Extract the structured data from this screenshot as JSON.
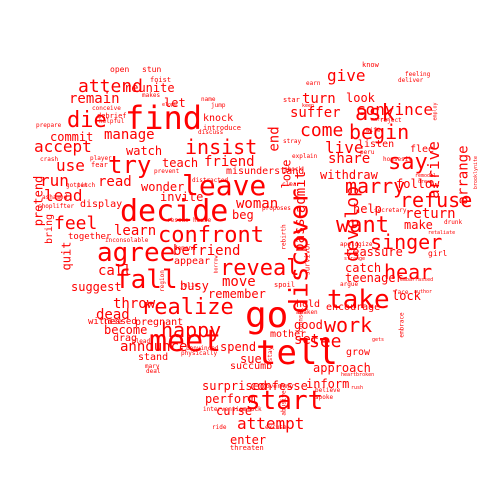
{
  "theme": {
    "word_color": "#ff0000",
    "background": "#ffffff",
    "shape": "heart"
  },
  "words": [
    {
      "id": "tell",
      "text": "tell"
    },
    {
      "id": "go",
      "text": "go"
    },
    {
      "id": "meet",
      "text": "meet"
    },
    {
      "id": "find",
      "text": "find"
    },
    {
      "id": "decide",
      "text": "decide"
    },
    {
      "id": "leave",
      "text": "leave"
    },
    {
      "id": "agree",
      "text": "agree"
    },
    {
      "id": "fall",
      "text": "fall"
    },
    {
      "id": "take",
      "text": "take"
    },
    {
      "id": "discover",
      "text": "discover"
    },
    {
      "id": "start",
      "text": "start"
    },
    {
      "id": "confront",
      "text": "confront"
    },
    {
      "id": "realize",
      "text": "realize"
    },
    {
      "id": "reveal",
      "text": "reveal"
    },
    {
      "id": "try",
      "text": "try"
    },
    {
      "id": "ask",
      "text": "ask"
    },
    {
      "id": "want",
      "text": "want"
    },
    {
      "id": "work",
      "text": "work"
    },
    {
      "id": "say",
      "text": "say"
    },
    {
      "id": "begin",
      "text": "begin"
    },
    {
      "id": "singer",
      "text": "singer"
    },
    {
      "id": "refuse",
      "text": "refuse"
    },
    {
      "id": "insist",
      "text": "insist"
    },
    {
      "id": "happy",
      "text": "happy"
    },
    {
      "id": "die",
      "text": "die"
    },
    {
      "id": "come",
      "text": "come"
    },
    {
      "id": "marry",
      "text": "marry"
    },
    {
      "id": "attend",
      "text": "attend"
    },
    {
      "id": "hear",
      "text": "hear"
    },
    {
      "id": "attempt",
      "text": "attempt"
    },
    {
      "id": "accept",
      "text": "accept"
    },
    {
      "id": "develop",
      "text": "develop"
    },
    {
      "id": "arrive",
      "text": "arrive"
    },
    {
      "id": "convince",
      "text": "convince"
    },
    {
      "id": "feel",
      "text": "feel"
    },
    {
      "id": "give",
      "text": "give"
    },
    {
      "id": "live",
      "text": "live"
    },
    {
      "id": "see",
      "text": "see"
    },
    {
      "id": "remain",
      "text": "remain"
    },
    {
      "id": "manage",
      "text": "manage"
    },
    {
      "id": "use",
      "text": "use"
    },
    {
      "id": "run",
      "text": "run"
    },
    {
      "id": "woman",
      "text": "woman"
    },
    {
      "id": "learn",
      "text": "learn"
    },
    {
      "id": "end",
      "text": "end"
    },
    {
      "id": "befriend",
      "text": "befriend"
    },
    {
      "id": "announce",
      "text": "announce"
    },
    {
      "id": "move",
      "text": "move"
    },
    {
      "id": "friend",
      "text": "friend"
    },
    {
      "id": "suffer",
      "text": "suffer"
    },
    {
      "id": "share",
      "text": "share"
    },
    {
      "id": "turn",
      "text": "turn"
    },
    {
      "id": "return",
      "text": "return"
    },
    {
      "id": "lead",
      "text": "lead"
    },
    {
      "id": "call",
      "text": "call"
    },
    {
      "id": "throw",
      "text": "throw"
    },
    {
      "id": "dead",
      "text": "dead"
    },
    {
      "id": "set",
      "text": "set"
    },
    {
      "id": "remember",
      "text": "remember"
    },
    {
      "id": "pass",
      "text": "pass"
    },
    {
      "id": "admit",
      "text": "admit"
    },
    {
      "id": "read",
      "text": "read"
    },
    {
      "id": "watch",
      "text": "watch"
    },
    {
      "id": "reunite",
      "text": "reunite"
    },
    {
      "id": "arrange",
      "text": "arrange"
    },
    {
      "id": "perform",
      "text": "perform"
    },
    {
      "id": "surprised",
      "text": "surprised"
    },
    {
      "id": "catch",
      "text": "catch"
    },
    {
      "id": "good",
      "text": "good"
    },
    {
      "id": "enter",
      "text": "enter"
    },
    {
      "id": "lock",
      "text": "lock"
    },
    {
      "id": "let",
      "text": "let"
    },
    {
      "id": "commit",
      "text": "commit"
    },
    {
      "id": "teach",
      "text": "teach"
    },
    {
      "id": "wonder",
      "text": "wonder"
    },
    {
      "id": "invite",
      "text": "invite"
    },
    {
      "id": "beg",
      "text": "beg"
    },
    {
      "id": "withdraw",
      "text": "withdraw"
    },
    {
      "id": "pretend",
      "text": "pretend"
    },
    {
      "id": "quit",
      "text": "quit"
    },
    {
      "id": "busy",
      "text": "busy"
    },
    {
      "id": "suggest",
      "text": "suggest"
    },
    {
      "id": "become",
      "text": "become"
    },
    {
      "id": "spend",
      "text": "spend"
    },
    {
      "id": "follow",
      "text": "follow"
    },
    {
      "id": "look",
      "text": "look"
    },
    {
      "id": "love",
      "text": "love"
    },
    {
      "id": "help",
      "text": "help"
    },
    {
      "id": "make",
      "text": "make"
    },
    {
      "id": "reassure",
      "text": "reassure"
    },
    {
      "id": "teenager",
      "text": "teenager"
    },
    {
      "id": "confesse",
      "text": "confesse"
    },
    {
      "id": "curse",
      "text": "curse"
    },
    {
      "id": "approach",
      "text": "approach"
    },
    {
      "id": "inform",
      "text": "inform"
    },
    {
      "id": "sue",
      "text": "sue"
    },
    {
      "id": "appear",
      "text": "appear"
    },
    {
      "id": "hold",
      "text": "hold"
    },
    {
      "id": "encourage",
      "text": "encourage"
    },
    {
      "id": "mother",
      "text": "mother"
    },
    {
      "id": "knock",
      "text": "knock"
    },
    {
      "id": "misunderstand",
      "text": "misunderstand"
    },
    {
      "id": "flee",
      "text": "flee"
    },
    {
      "id": "listen",
      "text": "listen"
    },
    {
      "id": "grow",
      "text": "grow"
    },
    {
      "id": "display",
      "text": "display"
    },
    {
      "id": "together",
      "text": "together"
    },
    {
      "id": "witnessed",
      "text": "witnessed"
    },
    {
      "id": "pregnant",
      "text": "pregnant"
    },
    {
      "id": "succumb",
      "text": "succumb"
    },
    {
      "id": "drag",
      "text": "drag"
    },
    {
      "id": "stand",
      "text": "stand"
    },
    {
      "id": "lose",
      "text": "lose"
    },
    {
      "id": "bring",
      "text": "bring"
    },
    {
      "id": "open",
      "text": "open"
    },
    {
      "id": "stun",
      "text": "stun"
    },
    {
      "id": "foist",
      "text": "foist"
    },
    {
      "id": "makes",
      "text": "makes"
    },
    {
      "id": "conceive",
      "text": "conceive"
    },
    {
      "id": "helpful",
      "text": "helpful"
    },
    {
      "id": "debrief",
      "text": "debrief"
    },
    {
      "id": "prepare",
      "text": "prepare"
    },
    {
      "id": "name",
      "text": "name"
    },
    {
      "id": "jump",
      "text": "jump"
    },
    {
      "id": "discuss",
      "text": "discuss"
    },
    {
      "id": "introduce",
      "text": "introduce"
    },
    {
      "id": "prevent",
      "text": "prevent"
    },
    {
      "id": "distracted",
      "text": "distracted"
    },
    {
      "id": "player",
      "text": "player"
    },
    {
      "id": "fear",
      "text": "fear"
    },
    {
      "id": "crash",
      "text": "crash"
    },
    {
      "id": "gotten",
      "text": "gotten"
    },
    {
      "id": "ashamed",
      "text": "ashamed"
    },
    {
      "id": "shoplifter",
      "text": "shoplifter"
    },
    {
      "id": "pitch",
      "text": "pitch"
    },
    {
      "id": "rescue",
      "text": "rescue"
    },
    {
      "id": "house",
      "text": "house"
    },
    {
      "id": "inconsolable",
      "text": "inconsolable"
    },
    {
      "id": "demand",
      "text": "demand"
    },
    {
      "id": "region",
      "text": "region"
    },
    {
      "id": "julie",
      "text": "julie"
    },
    {
      "id": "convinced",
      "text": "convinced"
    },
    {
      "id": "physically",
      "text": "physically"
    },
    {
      "id": "mary",
      "text": "mary"
    },
    {
      "id": "deal",
      "text": "deal"
    },
    {
      "id": "plead",
      "text": "plead"
    },
    {
      "id": "intervention",
      "text": "intervention"
    },
    {
      "id": "ride",
      "text": "ride"
    },
    {
      "id": "unlock",
      "text": "unlock"
    },
    {
      "id": "abusive",
      "text": "abusive"
    },
    {
      "id": "excuse",
      "text": "excuse"
    },
    {
      "id": "threaten",
      "text": "threaten"
    },
    {
      "id": "overhear",
      "text": "overhear"
    },
    {
      "id": "stay",
      "text": "stay"
    },
    {
      "id": "counsel",
      "text": "counsel"
    },
    {
      "id": "awaken",
      "text": "awaken"
    },
    {
      "id": "spoil",
      "text": "spoil"
    },
    {
      "id": "survivor",
      "text": "survivor"
    },
    {
      "id": "rebirth",
      "text": "rebirth"
    },
    {
      "id": "proposes",
      "text": "proposes"
    },
    {
      "id": "shock",
      "text": "shock"
    },
    {
      "id": "clear",
      "text": "clear"
    },
    {
      "id": "explain",
      "text": "explain"
    },
    {
      "id": "stray",
      "text": "stray"
    },
    {
      "id": "star",
      "text": "star"
    },
    {
      "id": "earn",
      "text": "earn"
    },
    {
      "id": "keep",
      "text": "keep"
    },
    {
      "id": "know",
      "text": "know"
    },
    {
      "id": "marrie",
      "text": "marrie"
    },
    {
      "id": "reject",
      "text": "reject"
    },
    {
      "id": "feeling",
      "text": "feeling"
    },
    {
      "id": "deliver",
      "text": "deliver"
    },
    {
      "id": "employ",
      "text": "employ"
    },
    {
      "id": "wife",
      "text": "wife"
    },
    {
      "id": "peru",
      "text": "peru"
    },
    {
      "id": "housesit",
      "text": "housesit"
    },
    {
      "id": "remodel",
      "text": "remodel"
    },
    {
      "id": "dream",
      "text": "dream"
    },
    {
      "id": "secretary",
      "text": "secretary"
    },
    {
      "id": "apologize",
      "text": "apologize"
    },
    {
      "id": "argue",
      "text": "argue"
    },
    {
      "id": "strange",
      "text": "strange"
    },
    {
      "id": "drunk",
      "text": "drunk"
    },
    {
      "id": "retaliate",
      "text": "retaliate"
    },
    {
      "id": "girl",
      "text": "girl"
    },
    {
      "id": "embarrassed",
      "text": "embarrassed"
    },
    {
      "id": "face",
      "text": "face"
    },
    {
      "id": "author",
      "text": "author"
    },
    {
      "id": "embrace",
      "text": "embrace"
    },
    {
      "id": "heartbroken",
      "text": "heartbroken"
    },
    {
      "id": "rush",
      "text": "rush"
    },
    {
      "id": "gets",
      "text": "gets"
    },
    {
      "id": "believe",
      "text": "believe"
    },
    {
      "id": "spoke",
      "text": "spoke"
    },
    {
      "id": "brooklynite",
      "text": "brooklynite"
    },
    {
      "id": "borrow",
      "text": "borrow"
    },
    {
      "id": "elope",
      "text": "elope"
    }
  ]
}
